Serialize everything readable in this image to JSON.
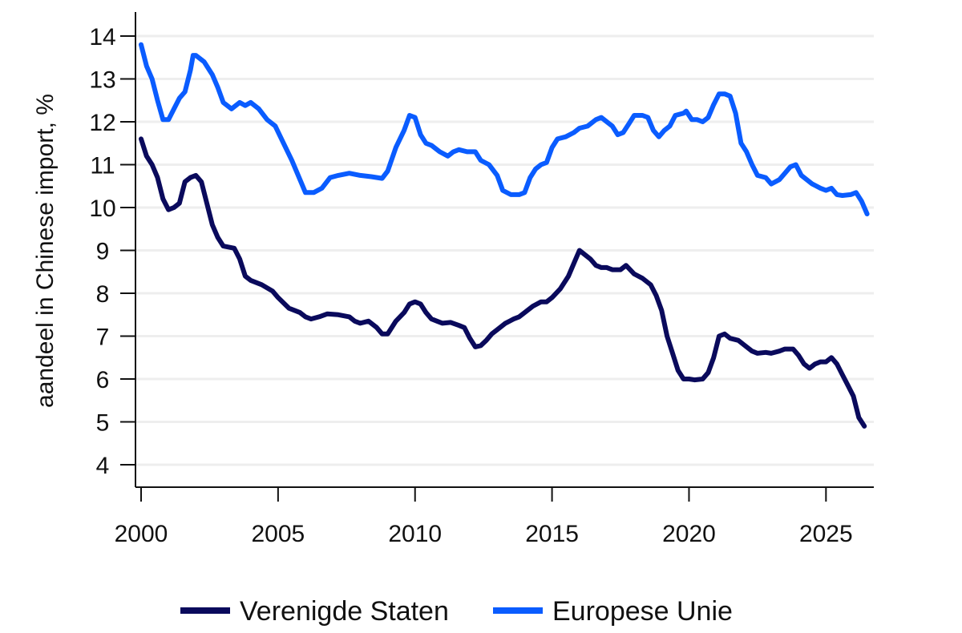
{
  "chart_data": {
    "type": "line",
    "title": "",
    "xlabel": "",
    "ylabel": "aandeel in Chinese import, %",
    "xlim": [
      2000,
      2026.6
    ],
    "ylim": [
      3.5,
      14.5
    ],
    "xticks": [
      "2000",
      "2005",
      "2010",
      "2015",
      "2020",
      "2025"
    ],
    "yticks": [
      "4",
      "5",
      "6",
      "7",
      "8",
      "9",
      "10",
      "11",
      "12",
      "13",
      "14"
    ],
    "grid": "horizontal",
    "legend_position": "bottom",
    "series": [
      {
        "name": "Verenigde Staten",
        "color": "#0a0a5c",
        "points": [
          [
            2000.0,
            11.6
          ],
          [
            2000.2,
            11.2
          ],
          [
            2000.4,
            11.0
          ],
          [
            2000.6,
            10.7
          ],
          [
            2000.8,
            10.2
          ],
          [
            2001.0,
            9.95
          ],
          [
            2001.2,
            10.0
          ],
          [
            2001.4,
            10.1
          ],
          [
            2001.6,
            10.6
          ],
          [
            2001.8,
            10.7
          ],
          [
            2002.0,
            10.75
          ],
          [
            2002.2,
            10.6
          ],
          [
            2002.4,
            10.1
          ],
          [
            2002.6,
            9.6
          ],
          [
            2002.8,
            9.3
          ],
          [
            2003.0,
            9.1
          ],
          [
            2003.4,
            9.05
          ],
          [
            2003.6,
            8.8
          ],
          [
            2003.8,
            8.4
          ],
          [
            2004.0,
            8.3
          ],
          [
            2004.4,
            8.2
          ],
          [
            2004.8,
            8.05
          ],
          [
            2005.0,
            7.9
          ],
          [
            2005.4,
            7.65
          ],
          [
            2005.8,
            7.55
          ],
          [
            2006.0,
            7.45
          ],
          [
            2006.2,
            7.4
          ],
          [
            2006.5,
            7.45
          ],
          [
            2006.8,
            7.52
          ],
          [
            2007.2,
            7.5
          ],
          [
            2007.6,
            7.45
          ],
          [
            2007.8,
            7.35
          ],
          [
            2008.0,
            7.3
          ],
          [
            2008.3,
            7.35
          ],
          [
            2008.6,
            7.2
          ],
          [
            2008.8,
            7.05
          ],
          [
            2009.0,
            7.05
          ],
          [
            2009.3,
            7.35
          ],
          [
            2009.6,
            7.55
          ],
          [
            2009.8,
            7.75
          ],
          [
            2010.0,
            7.8
          ],
          [
            2010.2,
            7.75
          ],
          [
            2010.4,
            7.55
          ],
          [
            2010.6,
            7.4
          ],
          [
            2010.8,
            7.35
          ],
          [
            2011.0,
            7.3
          ],
          [
            2011.3,
            7.32
          ],
          [
            2011.6,
            7.25
          ],
          [
            2011.8,
            7.2
          ],
          [
            2012.0,
            6.95
          ],
          [
            2012.2,
            6.75
          ],
          [
            2012.4,
            6.78
          ],
          [
            2012.6,
            6.9
          ],
          [
            2012.8,
            7.05
          ],
          [
            2013.0,
            7.15
          ],
          [
            2013.3,
            7.3
          ],
          [
            2013.6,
            7.4
          ],
          [
            2013.8,
            7.45
          ],
          [
            2014.0,
            7.55
          ],
          [
            2014.3,
            7.7
          ],
          [
            2014.6,
            7.8
          ],
          [
            2014.8,
            7.8
          ],
          [
            2015.0,
            7.9
          ],
          [
            2015.3,
            8.1
          ],
          [
            2015.6,
            8.4
          ],
          [
            2015.8,
            8.7
          ],
          [
            2016.0,
            9.0
          ],
          [
            2016.2,
            8.9
          ],
          [
            2016.4,
            8.8
          ],
          [
            2016.6,
            8.65
          ],
          [
            2016.8,
            8.6
          ],
          [
            2017.0,
            8.6
          ],
          [
            2017.2,
            8.55
          ],
          [
            2017.5,
            8.55
          ],
          [
            2017.7,
            8.65
          ],
          [
            2018.0,
            8.45
          ],
          [
            2018.3,
            8.35
          ],
          [
            2018.6,
            8.2
          ],
          [
            2018.8,
            7.95
          ],
          [
            2019.0,
            7.6
          ],
          [
            2019.2,
            7.0
          ],
          [
            2019.4,
            6.6
          ],
          [
            2019.6,
            6.2
          ],
          [
            2019.8,
            6.0
          ],
          [
            2020.0,
            6.0
          ],
          [
            2020.2,
            5.98
          ],
          [
            2020.5,
            6.0
          ],
          [
            2020.7,
            6.15
          ],
          [
            2020.9,
            6.5
          ],
          [
            2021.1,
            7.0
          ],
          [
            2021.3,
            7.05
          ],
          [
            2021.5,
            6.95
          ],
          [
            2021.8,
            6.9
          ],
          [
            2022.0,
            6.8
          ],
          [
            2022.3,
            6.65
          ],
          [
            2022.5,
            6.6
          ],
          [
            2022.8,
            6.62
          ],
          [
            2023.0,
            6.6
          ],
          [
            2023.3,
            6.65
          ],
          [
            2023.5,
            6.7
          ],
          [
            2023.8,
            6.7
          ],
          [
            2024.0,
            6.55
          ],
          [
            2024.2,
            6.35
          ],
          [
            2024.4,
            6.25
          ],
          [
            2024.6,
            6.35
          ],
          [
            2024.8,
            6.4
          ],
          [
            2025.0,
            6.4
          ],
          [
            2025.2,
            6.5
          ],
          [
            2025.4,
            6.35
          ],
          [
            2025.6,
            6.1
          ],
          [
            2025.8,
            5.85
          ],
          [
            2026.0,
            5.6
          ],
          [
            2026.2,
            5.1
          ],
          [
            2026.4,
            4.9
          ]
        ]
      },
      {
        "name": "Europese Unie",
        "color": "#0a5cff",
        "points": [
          [
            2000.0,
            13.8
          ],
          [
            2000.2,
            13.3
          ],
          [
            2000.4,
            13.0
          ],
          [
            2000.6,
            12.5
          ],
          [
            2000.8,
            12.05
          ],
          [
            2001.0,
            12.05
          ],
          [
            2001.2,
            12.3
          ],
          [
            2001.4,
            12.55
          ],
          [
            2001.6,
            12.7
          ],
          [
            2001.8,
            13.2
          ],
          [
            2001.9,
            13.55
          ],
          [
            2002.0,
            13.55
          ],
          [
            2002.3,
            13.4
          ],
          [
            2002.6,
            13.1
          ],
          [
            2002.8,
            12.8
          ],
          [
            2003.0,
            12.45
          ],
          [
            2003.3,
            12.3
          ],
          [
            2003.6,
            12.45
          ],
          [
            2003.8,
            12.38
          ],
          [
            2004.0,
            12.45
          ],
          [
            2004.3,
            12.3
          ],
          [
            2004.6,
            12.05
          ],
          [
            2004.9,
            11.9
          ],
          [
            2005.2,
            11.5
          ],
          [
            2005.5,
            11.1
          ],
          [
            2005.8,
            10.65
          ],
          [
            2006.0,
            10.35
          ],
          [
            2006.3,
            10.35
          ],
          [
            2006.6,
            10.45
          ],
          [
            2006.9,
            10.7
          ],
          [
            2007.2,
            10.75
          ],
          [
            2007.6,
            10.8
          ],
          [
            2008.0,
            10.75
          ],
          [
            2008.4,
            10.72
          ],
          [
            2008.8,
            10.68
          ],
          [
            2009.0,
            10.85
          ],
          [
            2009.3,
            11.4
          ],
          [
            2009.6,
            11.8
          ],
          [
            2009.8,
            12.15
          ],
          [
            2010.0,
            12.1
          ],
          [
            2010.2,
            11.7
          ],
          [
            2010.4,
            11.5
          ],
          [
            2010.6,
            11.45
          ],
          [
            2010.9,
            11.3
          ],
          [
            2011.2,
            11.2
          ],
          [
            2011.4,
            11.3
          ],
          [
            2011.6,
            11.35
          ],
          [
            2011.9,
            11.3
          ],
          [
            2012.2,
            11.3
          ],
          [
            2012.4,
            11.1
          ],
          [
            2012.7,
            11.0
          ],
          [
            2013.0,
            10.75
          ],
          [
            2013.2,
            10.4
          ],
          [
            2013.5,
            10.3
          ],
          [
            2013.8,
            10.3
          ],
          [
            2014.0,
            10.35
          ],
          [
            2014.2,
            10.7
          ],
          [
            2014.4,
            10.9
          ],
          [
            2014.6,
            11.0
          ],
          [
            2014.8,
            11.05
          ],
          [
            2015.0,
            11.4
          ],
          [
            2015.2,
            11.6
          ],
          [
            2015.5,
            11.65
          ],
          [
            2015.8,
            11.75
          ],
          [
            2016.0,
            11.85
          ],
          [
            2016.3,
            11.9
          ],
          [
            2016.6,
            12.05
          ],
          [
            2016.8,
            12.1
          ],
          [
            2017.0,
            12.0
          ],
          [
            2017.2,
            11.9
          ],
          [
            2017.4,
            11.7
          ],
          [
            2017.6,
            11.75
          ],
          [
            2017.8,
            11.95
          ],
          [
            2018.0,
            12.15
          ],
          [
            2018.3,
            12.15
          ],
          [
            2018.5,
            12.1
          ],
          [
            2018.7,
            11.8
          ],
          [
            2018.9,
            11.65
          ],
          [
            2019.1,
            11.8
          ],
          [
            2019.3,
            11.9
          ],
          [
            2019.5,
            12.15
          ],
          [
            2019.8,
            12.2
          ],
          [
            2019.9,
            12.25
          ],
          [
            2020.1,
            12.05
          ],
          [
            2020.3,
            12.05
          ],
          [
            2020.5,
            12.0
          ],
          [
            2020.7,
            12.1
          ],
          [
            2020.9,
            12.4
          ],
          [
            2021.1,
            12.65
          ],
          [
            2021.3,
            12.65
          ],
          [
            2021.5,
            12.6
          ],
          [
            2021.7,
            12.2
          ],
          [
            2021.9,
            11.5
          ],
          [
            2022.1,
            11.3
          ],
          [
            2022.3,
            11.0
          ],
          [
            2022.5,
            10.75
          ],
          [
            2022.8,
            10.7
          ],
          [
            2023.0,
            10.55
          ],
          [
            2023.3,
            10.65
          ],
          [
            2023.5,
            10.8
          ],
          [
            2023.7,
            10.95
          ],
          [
            2023.9,
            11.0
          ],
          [
            2024.1,
            10.75
          ],
          [
            2024.3,
            10.65
          ],
          [
            2024.5,
            10.55
          ],
          [
            2024.8,
            10.45
          ],
          [
            2025.0,
            10.4
          ],
          [
            2025.2,
            10.45
          ],
          [
            2025.4,
            10.3
          ],
          [
            2025.6,
            10.28
          ],
          [
            2025.9,
            10.3
          ],
          [
            2026.1,
            10.35
          ],
          [
            2026.3,
            10.15
          ],
          [
            2026.5,
            9.85
          ]
        ]
      }
    ]
  }
}
